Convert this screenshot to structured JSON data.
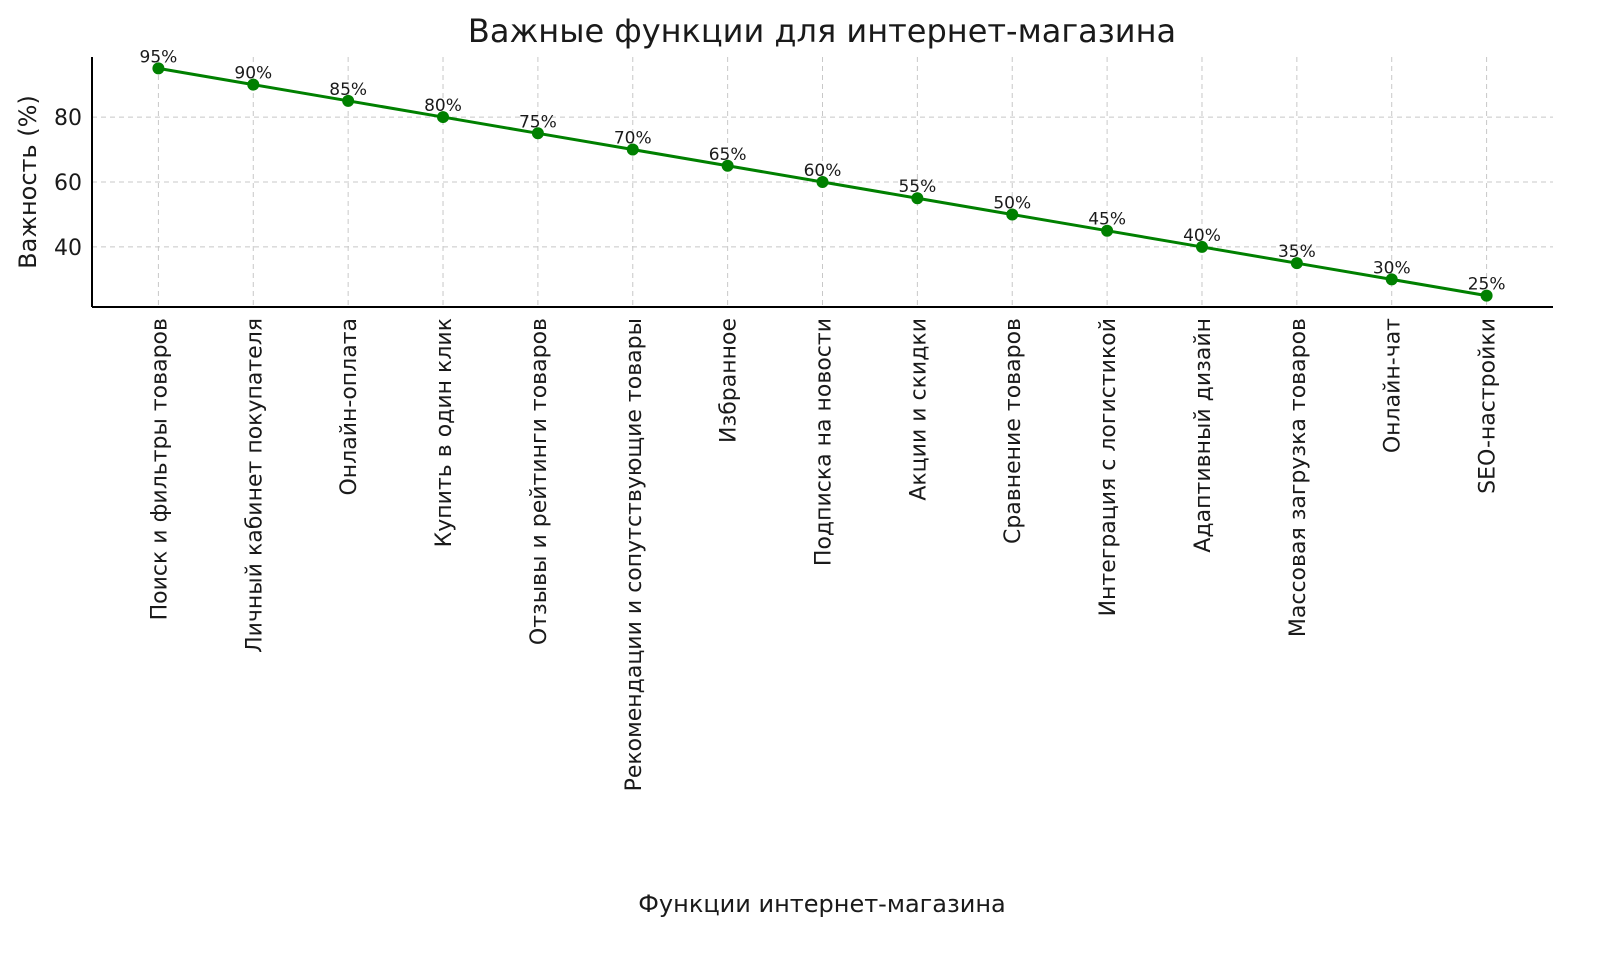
{
  "chart_data": {
    "type": "line",
    "title": "Важные функции для интернет-магазина",
    "xlabel": "Функции интернет-магазина",
    "ylabel": "Важность (%)",
    "categories": [
      "Поиск и фильтры товаров",
      "Личный кабинет покупателя",
      "Онлайн-оплата",
      "Купить в один клик",
      "Отзывы и рейтинги товаров",
      "Рекомендации и сопутствующие товары",
      "Избранное",
      "Подписка на новости",
      "Акции и скидки",
      "Сравнение товаров",
      "Интеграция с логистикой",
      "Адаптивный дизайн",
      "Массовая загрузка товаров",
      "Онлайн-чат",
      "SEO-настройки"
    ],
    "values": [
      95,
      90,
      85,
      80,
      75,
      70,
      65,
      60,
      55,
      50,
      45,
      40,
      35,
      30,
      25
    ],
    "data_labels": [
      "95%",
      "90%",
      "85%",
      "80%",
      "75%",
      "70%",
      "65%",
      "60%",
      "55%",
      "50%",
      "45%",
      "40%",
      "35%",
      "30%",
      "25%"
    ],
    "yticks": [
      40,
      60,
      80
    ],
    "ylim": [
      21.5,
      98.5
    ],
    "grid": true,
    "marker": "circle",
    "color": "#008000"
  }
}
